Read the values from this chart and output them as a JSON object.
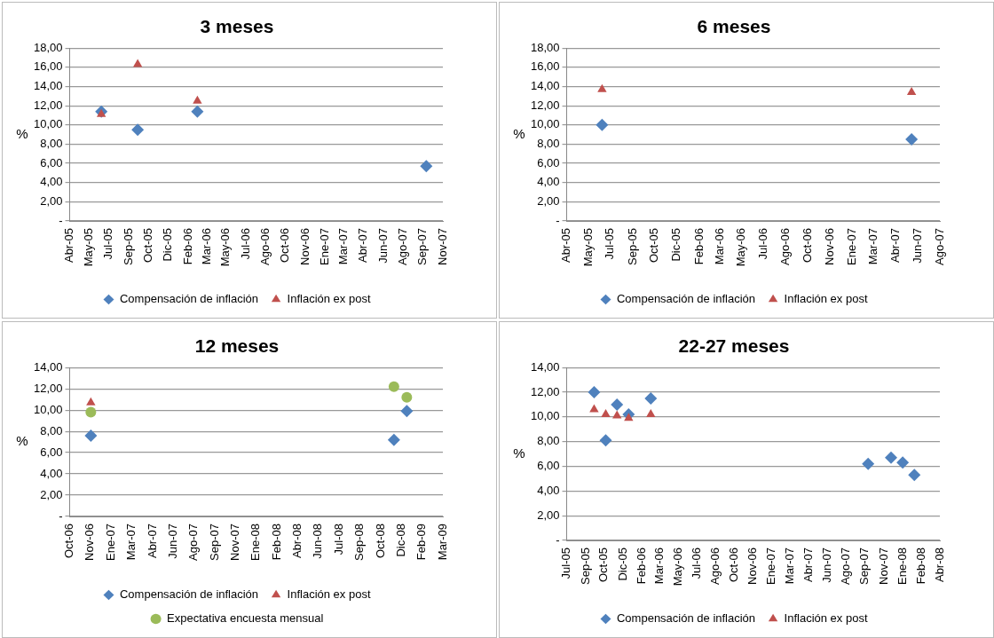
{
  "chart_data": [
    {
      "type": "scatter",
      "title": "3 meses",
      "ylabel": "%",
      "legend": "bottom",
      "grid": "y",
      "x": [
        "2005-06-30",
        "2005-09-30",
        "2006-02-28",
        "2007-09-30"
      ],
      "series": [
        {
          "name": "Compensación de inflación",
          "color": "#4f81bd",
          "marker": "diamond",
          "values": [
            11.4,
            9.5,
            11.4,
            5.7
          ]
        },
        {
          "name": "Inflación ex post",
          "color": "#c0504d",
          "marker": "triangle",
          "values": [
            11.1,
            16.3,
            12.5,
            null
          ]
        }
      ],
      "xlim": [
        "2005-04-11",
        "2007-11-11"
      ],
      "xticks": [
        {
          "value": "2005-04-11",
          "label": "Abr-05"
        },
        {
          "value": "2005-05-30",
          "label": "May-05"
        },
        {
          "value": "2005-07-19",
          "label": "Jul-05"
        },
        {
          "value": "2005-09-08",
          "label": "Sep-05"
        },
        {
          "value": "2005-10-27",
          "label": "Oct-05"
        },
        {
          "value": "2005-12-16",
          "label": "Dic-05"
        },
        {
          "value": "2006-02-05",
          "label": "Feb-06"
        },
        {
          "value": "2006-03-24",
          "label": "Mar-06"
        },
        {
          "value": "2006-05-12",
          "label": "May-06"
        },
        {
          "value": "2006-07-01",
          "label": "Jul-06"
        },
        {
          "value": "2006-08-20",
          "label": "Ago-06"
        },
        {
          "value": "2006-10-09",
          "label": "Oct-06"
        },
        {
          "value": "2006-11-28",
          "label": "Nov-06"
        },
        {
          "value": "2007-01-17",
          "label": "Ene-07"
        },
        {
          "value": "2007-03-06",
          "label": "Mar-07"
        },
        {
          "value": "2007-04-25",
          "label": "Abr-07"
        },
        {
          "value": "2007-06-14",
          "label": "Jun-07"
        },
        {
          "value": "2007-08-03",
          "label": "Ago-07"
        },
        {
          "value": "2007-09-22",
          "label": "Sep-07"
        },
        {
          "value": "2007-11-11",
          "label": "Nov-07"
        }
      ],
      "ylim": [
        0,
        18
      ],
      "yticks": [
        {
          "value": 0,
          "label": "-"
        },
        {
          "value": 2,
          "label": "2,00"
        },
        {
          "value": 4,
          "label": "4,00"
        },
        {
          "value": 6,
          "label": "6,00"
        },
        {
          "value": 8,
          "label": "8,00"
        },
        {
          "value": 10,
          "label": "10,00"
        },
        {
          "value": 12,
          "label": "12,00"
        },
        {
          "value": 14,
          "label": "14,00"
        },
        {
          "value": 16,
          "label": "16,00"
        },
        {
          "value": 18,
          "label": "18,00"
        }
      ]
    },
    {
      "type": "scatter",
      "title": "6 meses",
      "ylabel": "%",
      "legend": "bottom",
      "grid": "y",
      "x": [
        "2005-06-30",
        "2007-05-31"
      ],
      "series": [
        {
          "name": "Compensación de inflación",
          "color": "#4f81bd",
          "marker": "diamond",
          "values": [
            10.0,
            8.5
          ]
        },
        {
          "name": "Inflación ex post",
          "color": "#c0504d",
          "marker": "triangle",
          "values": [
            13.7,
            13.4
          ]
        }
      ],
      "xlim": [
        "2005-04-11",
        "2007-08-03"
      ],
      "xticks": [
        {
          "value": "2005-04-11",
          "label": "Abr-05"
        },
        {
          "value": "2005-05-30",
          "label": "May-05"
        },
        {
          "value": "2005-07-19",
          "label": "Jul-05"
        },
        {
          "value": "2005-09-08",
          "label": "Sep-05"
        },
        {
          "value": "2005-10-27",
          "label": "Oct-05"
        },
        {
          "value": "2005-12-16",
          "label": "Dic-05"
        },
        {
          "value": "2006-02-05",
          "label": "Feb-06"
        },
        {
          "value": "2006-03-24",
          "label": "Mar-06"
        },
        {
          "value": "2006-05-12",
          "label": "May-06"
        },
        {
          "value": "2006-07-01",
          "label": "Jul-06"
        },
        {
          "value": "2006-08-20",
          "label": "Ago-06"
        },
        {
          "value": "2006-10-09",
          "label": "Oct-06"
        },
        {
          "value": "2006-11-28",
          "label": "Nov-06"
        },
        {
          "value": "2007-01-17",
          "label": "Ene-07"
        },
        {
          "value": "2007-03-06",
          "label": "Mar-07"
        },
        {
          "value": "2007-04-25",
          "label": "Abr-07"
        },
        {
          "value": "2007-06-14",
          "label": "Jun-07"
        },
        {
          "value": "2007-08-03",
          "label": "Ago-07"
        }
      ],
      "ylim": [
        0,
        18
      ],
      "yticks": [
        {
          "value": 0,
          "label": "-"
        },
        {
          "value": 2,
          "label": "2,00"
        },
        {
          "value": 4,
          "label": "4,00"
        },
        {
          "value": 6,
          "label": "6,00"
        },
        {
          "value": 8,
          "label": "8,00"
        },
        {
          "value": 10,
          "label": "10,00"
        },
        {
          "value": 12,
          "label": "12,00"
        },
        {
          "value": 14,
          "label": "14,00"
        },
        {
          "value": 16,
          "label": "16,00"
        },
        {
          "value": 18,
          "label": "18,00"
        }
      ]
    },
    {
      "type": "scatter",
      "title": "12 meses",
      "ylabel": "%",
      "legend": "bottom",
      "grid": "y",
      "series": [
        {
          "name": "Compensación de inflación",
          "color": "#4f81bd",
          "marker": "diamond",
          "x": [
            "2006-11-30",
            "2008-11-30",
            "2008-12-31"
          ],
          "values": [
            7.6,
            7.2,
            9.9
          ]
        },
        {
          "name": "Inflación ex post",
          "color": "#c0504d",
          "marker": "triangle",
          "x": [
            "2006-11-30"
          ],
          "values": [
            10.7
          ]
        },
        {
          "name": "Expectativa encuesta mensual",
          "color": "#9bbb59",
          "marker": "circle",
          "x": [
            "2006-11-30",
            "2008-11-30",
            "2008-12-31"
          ],
          "values": [
            9.8,
            12.2,
            11.2
          ]
        }
      ],
      "xlim": [
        "2006-10-10",
        "2009-03-28"
      ],
      "xticks": [
        {
          "value": "2006-10-10",
          "label": "Oct-06"
        },
        {
          "value": "2006-11-29",
          "label": "Nov-06"
        },
        {
          "value": "2007-01-18",
          "label": "Ene-07"
        },
        {
          "value": "2007-03-09",
          "label": "Mar-07"
        },
        {
          "value": "2007-04-28",
          "label": "Abr-07"
        },
        {
          "value": "2007-06-17",
          "label": "Jun-07"
        },
        {
          "value": "2007-08-06",
          "label": "Ago-07"
        },
        {
          "value": "2007-09-25",
          "label": "Sep-07"
        },
        {
          "value": "2007-11-14",
          "label": "Nov-07"
        },
        {
          "value": "2008-01-03",
          "label": "Ene-08"
        },
        {
          "value": "2008-02-22",
          "label": "Feb-08"
        },
        {
          "value": "2008-04-12",
          "label": "Abr-08"
        },
        {
          "value": "2008-06-01",
          "label": "Jun-08"
        },
        {
          "value": "2008-07-21",
          "label": "Jul-08"
        },
        {
          "value": "2008-09-09",
          "label": "Sep-08"
        },
        {
          "value": "2008-10-29",
          "label": "Oct-08"
        },
        {
          "value": "2008-12-18",
          "label": "Dic-08"
        },
        {
          "value": "2009-02-06",
          "label": "Feb-09"
        },
        {
          "value": "2009-03-28",
          "label": "Mar-09"
        }
      ],
      "ylim": [
        0,
        14
      ],
      "yticks": [
        {
          "value": 0,
          "label": "-"
        },
        {
          "value": 2,
          "label": "2,00"
        },
        {
          "value": 4,
          "label": "4,00"
        },
        {
          "value": 6,
          "label": "6,00"
        },
        {
          "value": 8,
          "label": "8,00"
        },
        {
          "value": 10,
          "label": "10,00"
        },
        {
          "value": 12,
          "label": "12,00"
        },
        {
          "value": 14,
          "label": "14,00"
        }
      ]
    },
    {
      "type": "scatter",
      "title": "22-27 meses",
      "ylabel": "%",
      "legend": "bottom",
      "grid": "y",
      "series": [
        {
          "name": "Compensación de inflación",
          "color": "#4f81bd",
          "marker": "diamond",
          "x": [
            "2005-09-30",
            "2005-10-31",
            "2005-11-30",
            "2005-12-31",
            "2006-02-28",
            "2007-09-30",
            "2007-11-30",
            "2007-12-31",
            "2008-01-31"
          ],
          "values": [
            12.0,
            8.1,
            11.0,
            10.2,
            11.5,
            6.2,
            6.7,
            6.3,
            5.3
          ]
        },
        {
          "name": "Inflación ex post",
          "color": "#c0504d",
          "marker": "triangle",
          "x": [
            "2005-09-30",
            "2005-10-31",
            "2005-11-30",
            "2005-12-31",
            "2006-02-28"
          ],
          "values": [
            10.6,
            10.2,
            10.1,
            9.9,
            10.2
          ]
        }
      ],
      "xlim": [
        "2005-07-19",
        "2008-04-08"
      ],
      "xticks": [
        {
          "value": "2005-07-19",
          "label": "Jul-05"
        },
        {
          "value": "2005-09-08",
          "label": "Sep-05"
        },
        {
          "value": "2005-10-27",
          "label": "Oct-05"
        },
        {
          "value": "2005-12-16",
          "label": "Dic-05"
        },
        {
          "value": "2006-02-05",
          "label": "Feb-06"
        },
        {
          "value": "2006-03-24",
          "label": "Mar-06"
        },
        {
          "value": "2006-05-12",
          "label": "May-06"
        },
        {
          "value": "2006-07-01",
          "label": "Jul-06"
        },
        {
          "value": "2006-08-20",
          "label": "Ago-06"
        },
        {
          "value": "2006-10-09",
          "label": "Oct-06"
        },
        {
          "value": "2006-11-28",
          "label": "Nov-06"
        },
        {
          "value": "2007-01-17",
          "label": "Ene-07"
        },
        {
          "value": "2007-03-06",
          "label": "Mar-07"
        },
        {
          "value": "2007-04-25",
          "label": "Abr-07"
        },
        {
          "value": "2007-06-14",
          "label": "Jun-07"
        },
        {
          "value": "2007-08-03",
          "label": "Ago-07"
        },
        {
          "value": "2007-09-22",
          "label": "Sep-07"
        },
        {
          "value": "2007-11-11",
          "label": "Nov-07"
        },
        {
          "value": "2008-01-01",
          "label": "Ene-08"
        },
        {
          "value": "2008-02-19",
          "label": "Feb-08"
        },
        {
          "value": "2008-04-08",
          "label": "Abr-08"
        }
      ],
      "ylim": [
        0,
        14
      ],
      "yticks": [
        {
          "value": 0,
          "label": "-"
        },
        {
          "value": 2,
          "label": "2,00"
        },
        {
          "value": 4,
          "label": "4,00"
        },
        {
          "value": 6,
          "label": "6,00"
        },
        {
          "value": 8,
          "label": "8,00"
        },
        {
          "value": 10,
          "label": "10,00"
        },
        {
          "value": 12,
          "label": "12,00"
        },
        {
          "value": 14,
          "label": "14,00"
        }
      ]
    }
  ]
}
